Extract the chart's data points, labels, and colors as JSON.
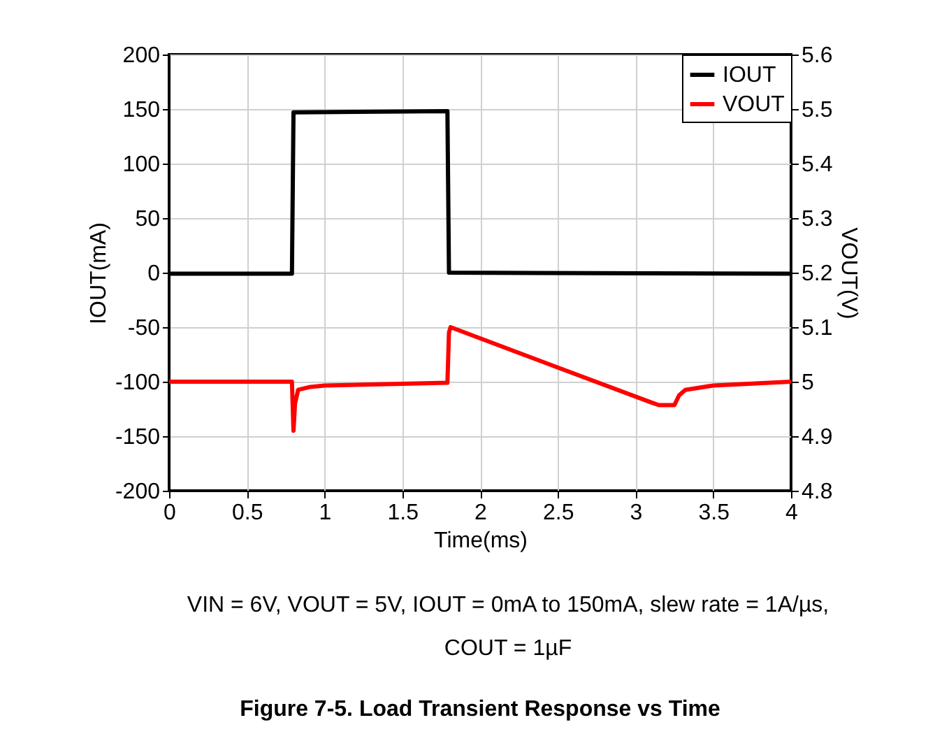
{
  "chart_data": {
    "type": "line",
    "title": "Figure 7-5. Load Transient Response vs Time",
    "xlabel": "Time(ms)",
    "ylabel": "IOUT(mA)",
    "y2label": "VOUT(V)",
    "annotations": [
      "VIN = 6V, VOUT = 5V, IOUT = 0mA to 150mA, slew rate = 1A/µs,",
      "COUT = 1µF"
    ],
    "xlim": [
      0,
      4
    ],
    "xticks": [
      0,
      0.5,
      1,
      1.5,
      2,
      2.5,
      3,
      3.5,
      4
    ],
    "ylim": [
      -200,
      200
    ],
    "yticks": [
      -200,
      -150,
      -100,
      -50,
      0,
      50,
      100,
      150,
      200
    ],
    "y2lim": [
      4.8,
      5.6
    ],
    "y2ticks": [
      4.8,
      4.9,
      5,
      5.1,
      5.2,
      5.3,
      5.4,
      5.5,
      5.6
    ],
    "grid": true,
    "legend": "top right",
    "line_style": "solid",
    "marker": "none",
    "series": [
      {
        "name": "IOUT",
        "color": "#000000",
        "x": [
          0,
          0.79,
          0.8,
          1.79,
          1.8,
          4
        ],
        "values": [
          -1,
          -1,
          147,
          148,
          0,
          -1
        ]
      },
      {
        "name": "VOUT",
        "color": "#ff0000",
        "axis": "y2",
        "x": [
          0,
          0.79,
          0.8,
          0.81,
          0.83,
          0.9,
          1.0,
          1.5,
          1.79,
          1.8,
          1.81,
          2.5,
          3.1,
          3.15,
          3.25,
          3.28,
          3.32,
          3.5,
          4
        ],
        "values": [
          5.0,
          5.0,
          4.91,
          4.96,
          4.985,
          4.99,
          4.993,
          4.996,
          4.998,
          5.09,
          5.1,
          5.026,
          4.962,
          4.957,
          4.957,
          4.975,
          4.985,
          4.993,
          5.0
        ]
      }
    ]
  }
}
